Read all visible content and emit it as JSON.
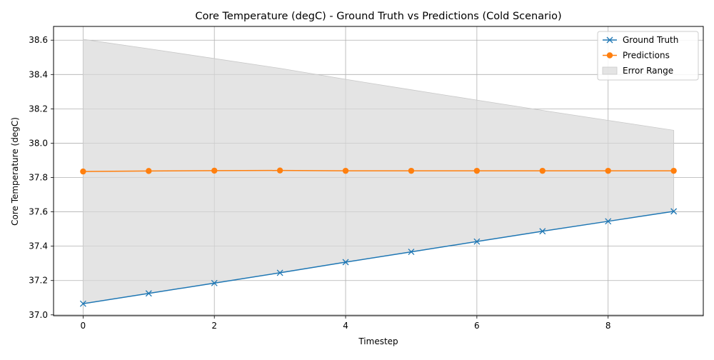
{
  "chart_data": {
    "type": "line",
    "title": "Core Temperature (degC) - Ground Truth vs Predictions (Cold Scenario)",
    "xlabel": "Timestep",
    "ylabel": "Core Temperature (degC)",
    "xlim": [
      -0.45,
      9.45
    ],
    "ylim": [
      36.995,
      38.68
    ],
    "xticks": [
      0,
      2,
      4,
      6,
      8
    ],
    "yticks": [
      37.0,
      37.2,
      37.4,
      37.6,
      37.8,
      38.0,
      38.2,
      38.4,
      38.6
    ],
    "xtick_labels": [
      "0",
      "2",
      "4",
      "6",
      "8"
    ],
    "ytick_labels": [
      "37.0",
      "37.2",
      "37.4",
      "37.6",
      "37.8",
      "38.0",
      "38.2",
      "38.4",
      "38.6"
    ],
    "grid": true,
    "legend_position": "top-right",
    "x": [
      0,
      1,
      2,
      3,
      4,
      5,
      6,
      7,
      8,
      9
    ],
    "series": [
      {
        "name": "Ground Truth",
        "marker": "x",
        "color": "#1f77b4",
        "values": [
          37.065,
          37.125,
          37.185,
          37.245,
          37.307,
          37.367,
          37.427,
          37.487,
          37.545,
          37.603
        ]
      },
      {
        "name": "Predictions",
        "marker": "o",
        "color": "#ff7f0e",
        "values": [
          37.835,
          37.838,
          37.84,
          37.841,
          37.839,
          37.839,
          37.839,
          37.839,
          37.839,
          37.839
        ]
      }
    ],
    "error_band": {
      "name": "Error Range",
      "color": "#d9d9d9",
      "lower": [
        37.065,
        37.125,
        37.185,
        37.245,
        37.307,
        37.367,
        37.427,
        37.487,
        37.545,
        37.603
      ],
      "upper": [
        38.605,
        38.55,
        38.493,
        38.436,
        38.372,
        38.311,
        38.251,
        38.191,
        38.133,
        38.075
      ]
    }
  }
}
